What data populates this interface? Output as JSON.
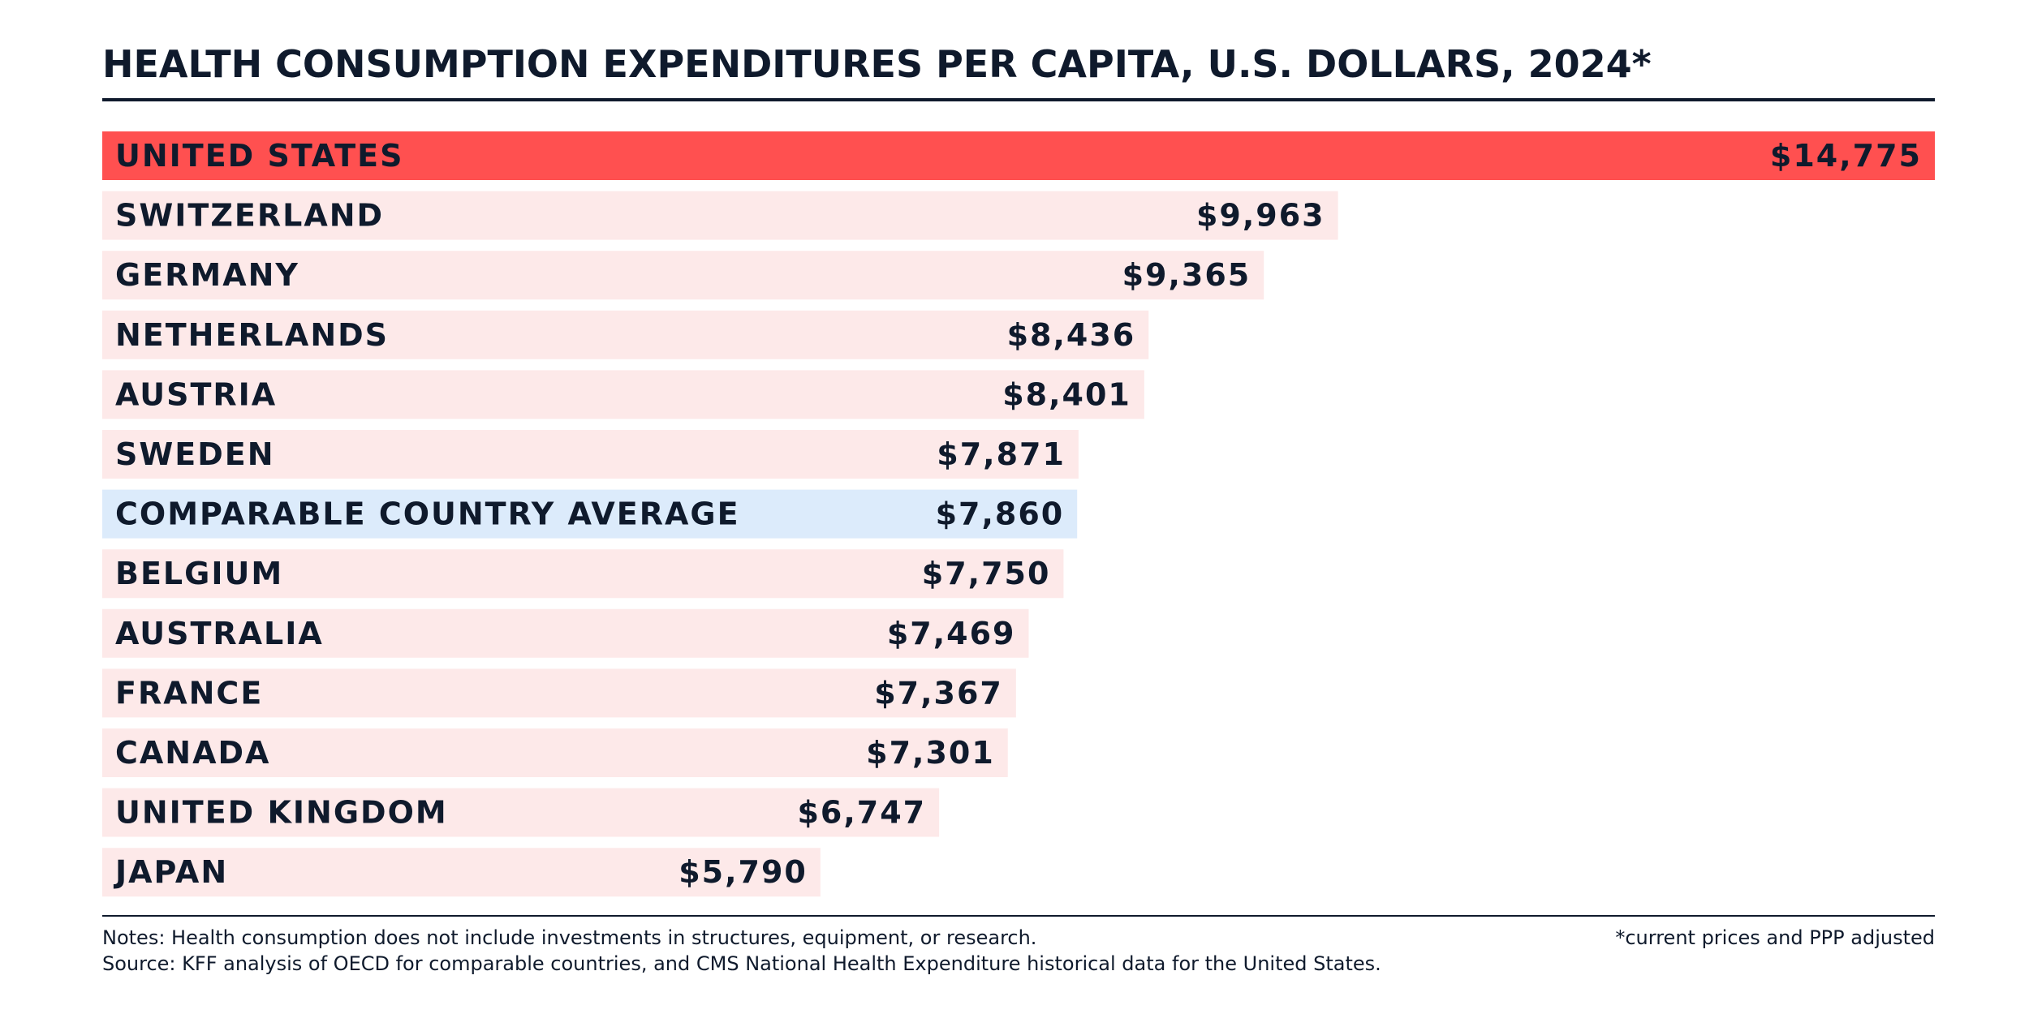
{
  "chart_data": {
    "type": "bar",
    "orientation": "horizontal",
    "title": "HEALTH CONSUMPTION EXPENDITURES PER CAPITA, U.S. DOLLARS, 2024*",
    "categories": [
      "UNITED STATES",
      "SWITZERLAND",
      "GERMANY",
      "NETHERLANDS",
      "AUSTRIA",
      "SWEDEN",
      "COMPARABLE COUNTRY AVERAGE",
      "BELGIUM",
      "AUSTRALIA",
      "FRANCE",
      "CANADA",
      "UNITED KINGDOM",
      "JAPAN"
    ],
    "values": [
      14775,
      9963,
      9365,
      8436,
      8401,
      7871,
      7860,
      7750,
      7469,
      7367,
      7301,
      6747,
      5790
    ],
    "value_labels": [
      "$14,775",
      "$9,963",
      "$9,365",
      "$8,436",
      "$8,401",
      "$7,871",
      "$7,860",
      "$7,750",
      "$7,469",
      "$7,367",
      "$7,301",
      "$6,747",
      "$5,790"
    ],
    "highlight": {
      "UNITED STATES": "#ff5050",
      "COMPARABLE COUNTRY AVERAGE": "#dcebfb"
    },
    "default_bar_color": "#fde9e9",
    "xlim": [
      0,
      14775
    ],
    "grid": false,
    "legend": "none"
  },
  "footer": {
    "notes": "Notes: Health consumption does not include investments in structures, equipment, or research.",
    "source": "Source: KFF analysis of OECD for comparable countries, and CMS National Health Expenditure historical data for the United States.",
    "ppp_note": "*current prices and PPP adjusted"
  },
  "colors": {
    "text": "#0f1a2c",
    "us_bar": "#ff5050",
    "average_bar": "#dcebfb",
    "country_bar": "#fde9e9"
  }
}
